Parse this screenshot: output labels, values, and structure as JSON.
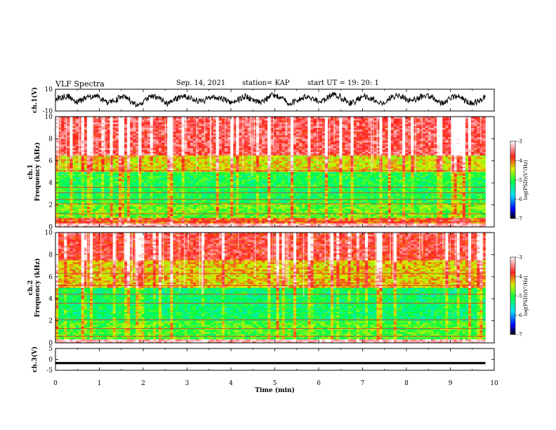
{
  "header": {
    "title": "VLF Spectra",
    "date": "Sep. 14, 2021",
    "station": "station= KAP",
    "start": "start  UT  =   19: 20: 1"
  },
  "colors": {
    "spectrogram_scale": [
      "#000000",
      "#0000ff",
      "#00e0ff",
      "#00ff40",
      "#d8f000",
      "#ff2020",
      "#ffffff"
    ],
    "trace": "#000000"
  },
  "chart_data": [
    {
      "type": "line",
      "name": "ch1-waveform",
      "ylabel": "ch.1(V)",
      "ylim": [
        -10,
        10
      ],
      "yticks": [
        "10",
        "-10"
      ],
      "xlim": [
        0,
        9.8
      ],
      "note_values": "noisy waveform centred near 0 V, swinging roughly between -5 V and +6 V"
    },
    {
      "type": "heatmap",
      "name": "ch1-spectrogram",
      "ylabel_line1": "ch.1",
      "ylabel_line2": "Frequency (kHz)",
      "ylim": [
        0,
        10
      ],
      "yticks": [
        "0",
        "2",
        "4",
        "6",
        "8",
        "10"
      ],
      "xlim": [
        0,
        9.8
      ],
      "colorbar": {
        "label": "log(PSD)(V²/Hz)",
        "range": [
          -7,
          -3
        ],
        "ticks": [
          "-3",
          "-4",
          "-5",
          "-6",
          "-7"
        ]
      },
      "bands_khz": [
        {
          "from": 0,
          "to": 0.8,
          "level": -4.0
        },
        {
          "from": 0.8,
          "to": 2.2,
          "level": -4.8
        },
        {
          "from": 2.2,
          "to": 5.0,
          "level": -5.1
        },
        {
          "from": 5.0,
          "to": 6.5,
          "level": -4.4
        },
        {
          "from": 6.5,
          "to": 10,
          "level": -3.6
        }
      ]
    },
    {
      "type": "heatmap",
      "name": "ch2-spectrogram",
      "ylabel_line1": "ch.2",
      "ylabel_line2": "Frequency (kHz)",
      "ylim": [
        0,
        10
      ],
      "yticks": [
        "0",
        "2",
        "4",
        "6",
        "8",
        "10"
      ],
      "xlim": [
        0,
        9.8
      ],
      "colorbar": {
        "label": "log(PSD)(V²/Hz)",
        "range": [
          -7,
          -3
        ],
        "ticks": [
          "-3",
          "-4",
          "-5",
          "-6",
          "-7"
        ]
      },
      "bands_khz": [
        {
          "from": 0,
          "to": 2.0,
          "level": -4.9
        },
        {
          "from": 2.0,
          "to": 5.0,
          "level": -5.2
        },
        {
          "from": 5.0,
          "to": 7.5,
          "level": -4.3
        },
        {
          "from": 7.5,
          "to": 10,
          "level": -3.7
        }
      ]
    },
    {
      "type": "line",
      "name": "ch3-waveform",
      "ylabel": "ch.3(V)",
      "ylim": [
        -5,
        5
      ],
      "yticks": [
        "5",
        "0",
        "-5"
      ],
      "xlim": [
        0,
        9.8
      ],
      "band": [
        -2.2,
        -1.2
      ],
      "xlabel": "Time  (min)",
      "xlim_axis": [
        0,
        10
      ],
      "xticks": [
        "0",
        "1",
        "2",
        "3",
        "4",
        "5",
        "6",
        "7",
        "8",
        "9",
        "10"
      ]
    }
  ]
}
